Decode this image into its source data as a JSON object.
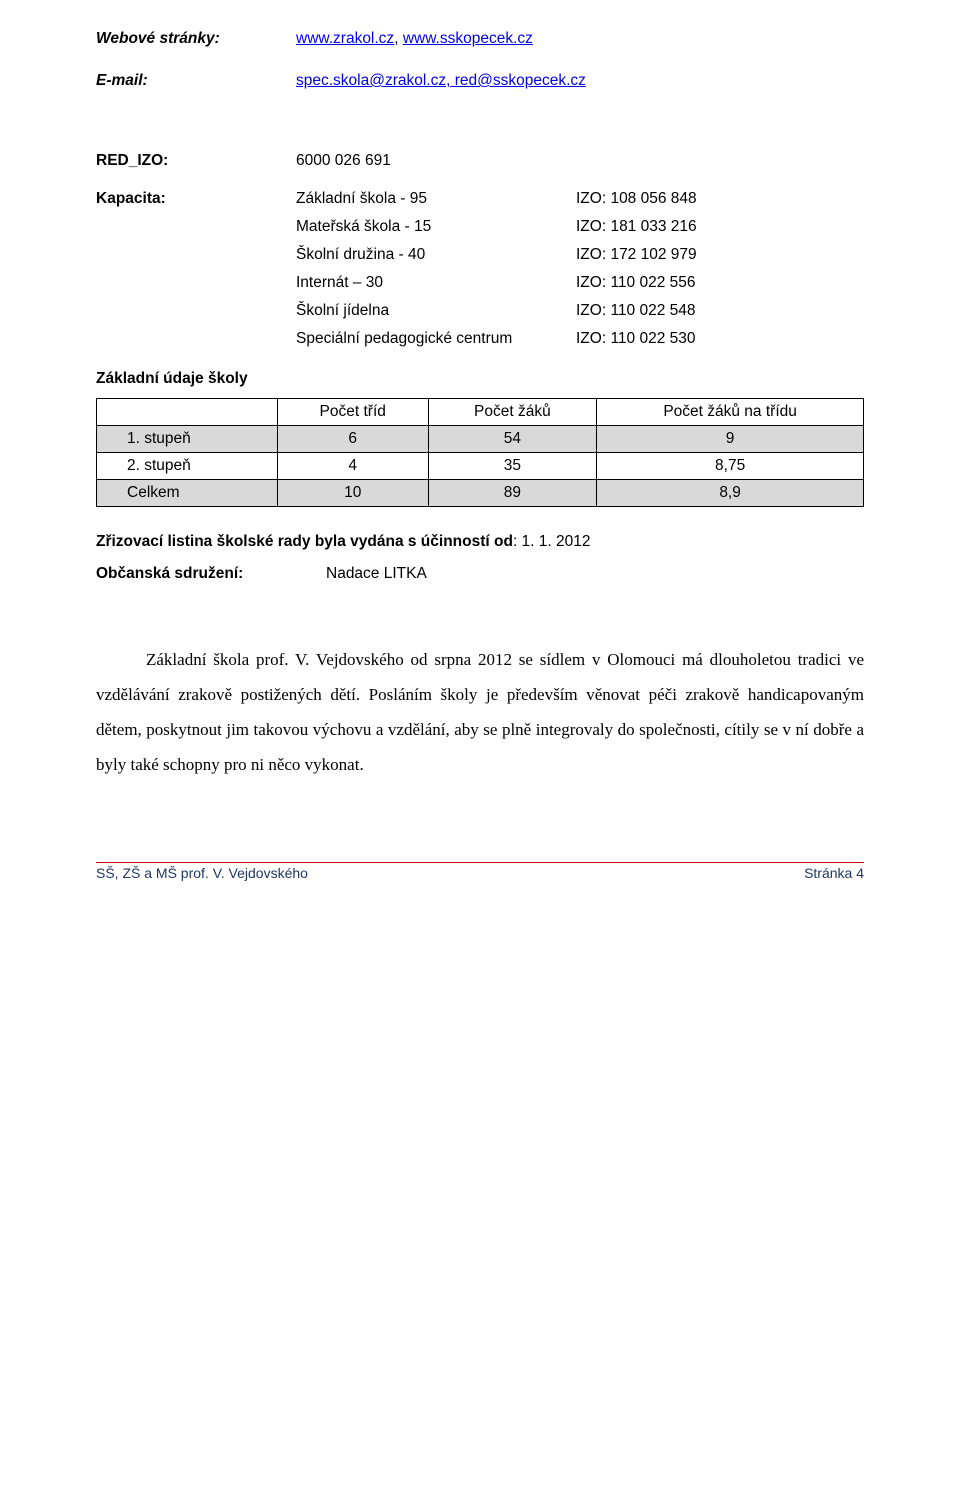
{
  "header": {
    "web_label": "Webové stránky:",
    "web_value_1": "www.zrakol.cz",
    "web_sep": ", ",
    "web_value_2": "www.sskopecek.cz",
    "email_label": "E-mail:",
    "email_value_1": "spec.skola@zrakol.cz,",
    "email_value_2": " red@sskopecek.cz"
  },
  "red_izo": {
    "label": "RED_IZO:",
    "value": "6000 026 691"
  },
  "kapacita": {
    "label": "Kapacita:",
    "rows": [
      {
        "name": "Základní škola - 95",
        "izo": "IZO:  108 056 848"
      },
      {
        "name": "Mateřská škola  - 15",
        "izo": "IZO:  181 033 216"
      },
      {
        "name": "Školní družina - 40",
        "izo": "IZO:  172 102 979"
      },
      {
        "name": "Internát – 30",
        "izo": "IZO:  110 022 556"
      },
      {
        "name": "Školní jídelna",
        "izo": "IZO:  110 022 548"
      },
      {
        "name": "Speciální pedagogické centrum",
        "izo": "IZO:  110 022 530"
      }
    ]
  },
  "zakladni_udaje_label": "Základní údaje školy",
  "table": {
    "headers": [
      "",
      "Počet tříd",
      "Počet žáků",
      "Počet žáků na třídu"
    ],
    "rows": [
      {
        "cells": [
          "1. stupeň",
          "6",
          "54",
          "9"
        ],
        "shaded": true
      },
      {
        "cells": [
          "2. stupeň",
          "4",
          "35",
          "8,75"
        ],
        "shaded": false
      },
      {
        "cells": [
          "Celkem",
          "10",
          "89",
          "8,9"
        ],
        "shaded": true
      }
    ]
  },
  "zrizovaci": {
    "label": "Zřizovací listina školské rady byla vydána s účinností od",
    "value": ":       1. 1. 2012"
  },
  "obcanska": {
    "label": "Občanská sdružení:",
    "value": "Nadace LITKA"
  },
  "paragraph": "Základní škola prof. V. Vejdovského od srpna 2012 se sídlem v Olomouci má dlouholetou tradici ve vzdělávání zrakově postižených dětí. Posláním školy je především věnovat péči zrakově handicapovaným dětem, poskytnout jim takovou výchovu a vzdělání, aby se plně integrovaly do společnosti, cítily se v ní dobře a byly také schopny pro ni něco vykonat.",
  "footer": {
    "left": "SŠ, ZŠ a MŠ prof. V. Vejdovského",
    "right": "Stránka 4"
  },
  "colors": {
    "link": "#0000ee",
    "footer_rule": "#c00000",
    "footer_text": "#1f3763",
    "shade": "#d9d9d9"
  }
}
